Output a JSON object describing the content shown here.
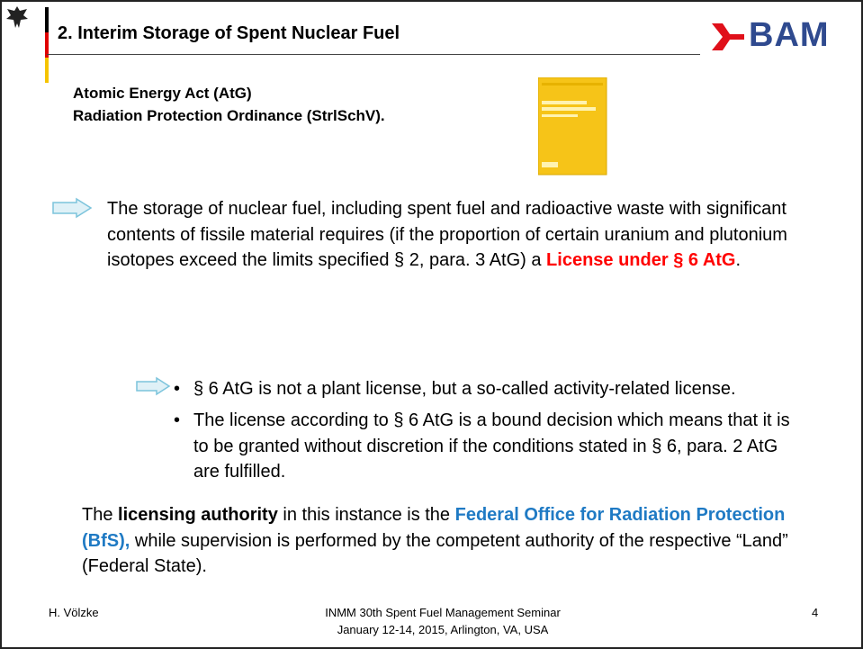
{
  "header": {
    "title": "2.   Interim Storage of Spent Nuclear Fuel",
    "logo": "BAM"
  },
  "subtitle": [
    "Atomic Energy Act (AtG)",
    "Radiation Protection Ordinance (StrlSchV)."
  ],
  "paragraph": {
    "text": "The storage of nuclear fuel, including spent fuel and radioactive waste with significant contents of fissile material requires (if the proportion of certain uranium and plutonium isotopes exceed the limits specified § 2, para. 3 AtG) a ",
    "highlight": "License under § 6 AtG",
    "end": "."
  },
  "bullets": [
    "§ 6 AtG is not a plant license, but a so-called activity-related license.",
    "The license according to § 6 AtG is a bound decision which means that it is to be granted without discretion if the conditions stated in § 6, para. 2 AtG are fulfilled."
  ],
  "closing": {
    "start": "The ",
    "bold": "licensing authority",
    "middle": " in this instance is the ",
    "highlight": "Federal Office for Radiation Protection (BfS),",
    "end": " while supervision is performed by the competent authority of the respective “Land” (Federal State)."
  },
  "footer": {
    "author": "H. Völzke",
    "event": [
      "INMM 30th Spent Fuel Management Seminar",
      "January 12-14, 2015, Arlington, VA, USA"
    ],
    "page": "4"
  }
}
